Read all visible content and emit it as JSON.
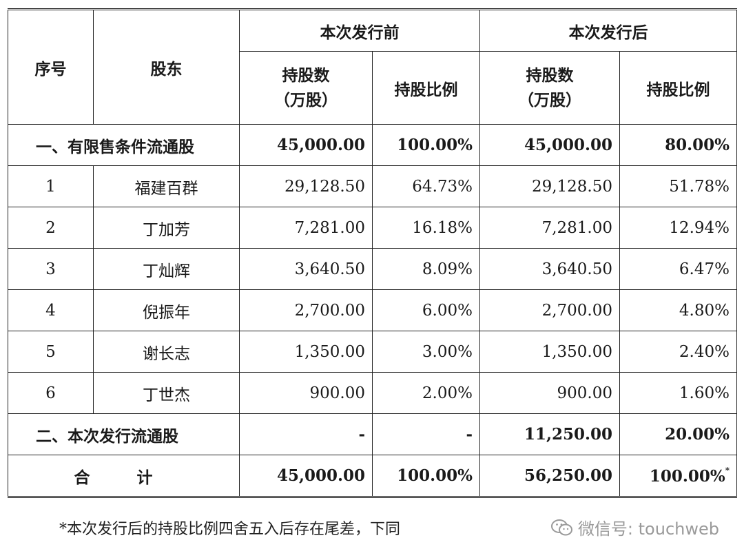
{
  "header": {
    "seq": "序号",
    "holder": "股东",
    "before": "本次发行前",
    "after": "本次发行后",
    "shares": "持股数",
    "shares_unit": "（万股）",
    "ratio": "持股比例"
  },
  "restricted": {
    "label": "一、有限售条件流通股",
    "before_shares": "45,000.00",
    "before_ratio": "100.00%",
    "after_shares": "45,000.00",
    "after_ratio": "80.00%"
  },
  "rows": [
    {
      "seq": "1",
      "name": "福建百群",
      "before_shares": "29,128.50",
      "before_ratio": "64.73%",
      "after_shares": "29,128.50",
      "after_ratio": "51.78%"
    },
    {
      "seq": "2",
      "name": "丁加芳",
      "before_shares": "7,281.00",
      "before_ratio": "16.18%",
      "after_shares": "7,281.00",
      "after_ratio": "12.94%"
    },
    {
      "seq": "3",
      "name": "丁灿辉",
      "before_shares": "3,640.50",
      "before_ratio": "8.09%",
      "after_shares": "3,640.50",
      "after_ratio": "6.47%"
    },
    {
      "seq": "4",
      "name": "倪振年",
      "before_shares": "2,700.00",
      "before_ratio": "6.00%",
      "after_shares": "2,700.00",
      "after_ratio": "4.80%"
    },
    {
      "seq": "5",
      "name": "谢长志",
      "before_shares": "1,350.00",
      "before_ratio": "3.00%",
      "after_shares": "1,350.00",
      "after_ratio": "2.40%"
    },
    {
      "seq": "6",
      "name": "丁世杰",
      "before_shares": "900.00",
      "before_ratio": "2.00%",
      "after_shares": "900.00",
      "after_ratio": "1.60%"
    }
  ],
  "issued": {
    "label": "二、本次发行流通股",
    "before_shares": "-",
    "before_ratio": "-",
    "after_shares": "11,250.00",
    "after_ratio": "20.00%"
  },
  "total": {
    "label": "合 计",
    "before_shares": "45,000.00",
    "before_ratio": "100.00%",
    "after_shares": "56,250.00",
    "after_ratio": "100.00%",
    "mark": "*"
  },
  "footnote": "*本次发行后的持股比例四舍五入后存在尾差，下同",
  "watermark": "微信号: touchweb"
}
